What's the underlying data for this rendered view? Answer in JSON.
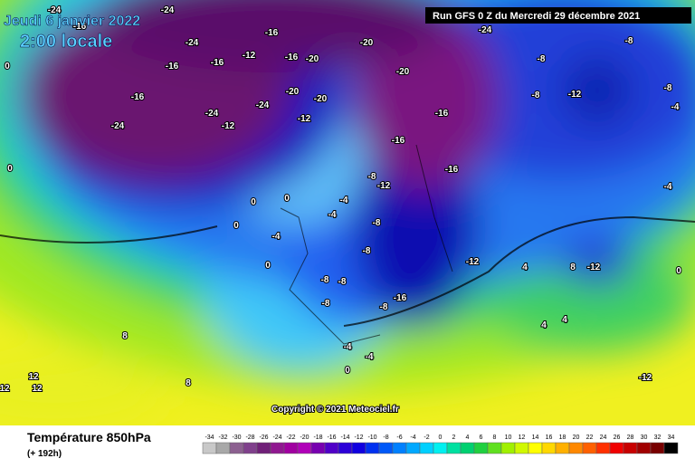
{
  "header": {
    "date": "Jeudi 6 janvier 2022",
    "time": "2:00 locale",
    "run": "Run GFS 0 Z du Mercredi 29 décembre 2021",
    "copyright": "Copyright © 2021 Meteociel.fr"
  },
  "map": {
    "labels": [
      -24,
      -24,
      -16,
      -16,
      -24,
      -20,
      -24,
      -8,
      0,
      -16,
      -16,
      -12,
      -16,
      -20,
      -20,
      -8,
      -16,
      -20,
      -20,
      -8,
      -12,
      -4,
      -24,
      -24,
      -12,
      -24,
      -12,
      -16,
      -16,
      -16,
      0,
      0,
      0,
      -8,
      -12,
      -4,
      -4,
      -8,
      0,
      -4,
      -8,
      -12,
      0,
      4,
      8,
      -12,
      -8,
      -8,
      -8,
      -16,
      -8,
      4,
      4,
      8,
      -4,
      -4,
      0,
      12,
      8,
      -12,
      12,
      12,
      -8,
      -4,
      0
    ]
  },
  "legend": {
    "title": "Température 850hPa",
    "lead": "(+ 192h)",
    "values": [
      -34,
      -32,
      -30,
      -28,
      -26,
      -24,
      -22,
      -20,
      -18,
      -16,
      -14,
      -12,
      -10,
      -8,
      -6,
      -4,
      -2,
      0,
      2,
      4,
      6,
      8,
      10,
      12,
      14,
      16,
      18,
      20,
      22,
      24,
      26,
      28,
      30,
      32,
      34
    ],
    "colors": [
      "#c8c8c8",
      "#a8a8a8",
      "#8c6090",
      "#80408c",
      "#702078",
      "#901890",
      "#a000a0",
      "#b000b8",
      "#7800b0",
      "#5000c8",
      "#2c00d8",
      "#1000e0",
      "#0030f0",
      "#0058f8",
      "#0080ff",
      "#00a8ff",
      "#00d0ff",
      "#00f0f0",
      "#00e0a0",
      "#00d070",
      "#20d040",
      "#60e020",
      "#a0f000",
      "#d0f800",
      "#ffff00",
      "#ffd800",
      "#ffb000",
      "#ff8800",
      "#ff6000",
      "#ff3000",
      "#f00000",
      "#c80000",
      "#a00000",
      "#780000",
      "#000000"
    ]
  }
}
